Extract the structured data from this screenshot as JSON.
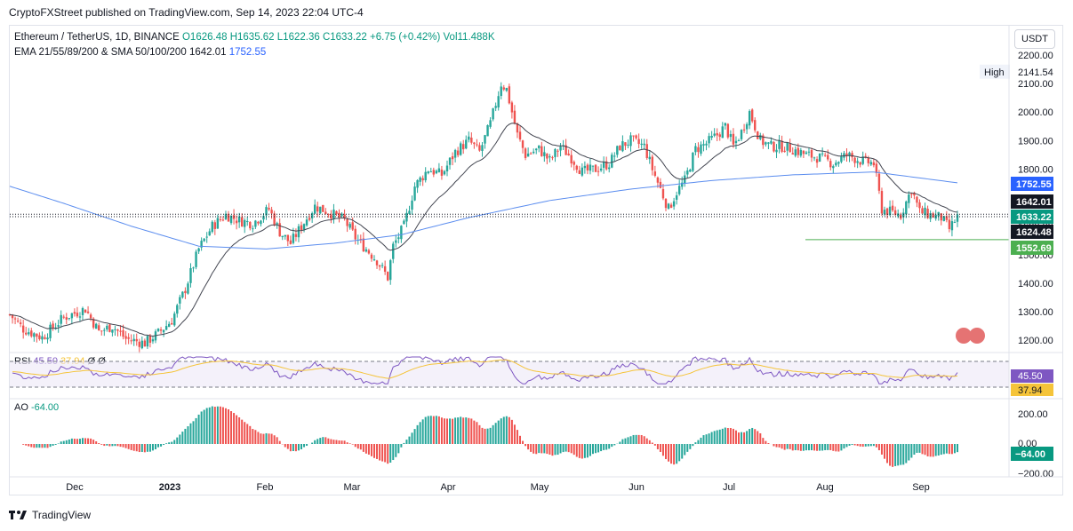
{
  "header": {
    "published": "CryptoFXStreet published on TradingView.com, Sep 14, 2023 22:04 UTC-4"
  },
  "legend": {
    "symbol": "Ethereum / TetherUS, 1D, BINANCE",
    "open": "O1626.48",
    "high": "H1635.62",
    "low": "L1622.36",
    "close": "C1633.22",
    "change": "+6.75 (+0.42%)",
    "volume": "Vol11.488K",
    "indicators_label": "EMA 21/55/89/200 & SMA 50/100/200",
    "indicator_value_1": "1642.01",
    "indicator_value_2": "1752.55"
  },
  "currency_button": "USDT",
  "price_axis": {
    "ticks": [
      "2200.00",
      "2100.00",
      "2000.00",
      "1900.00",
      "1800.00",
      "1700.00",
      "1600.00",
      "1500.00",
      "1400.00",
      "1300.00",
      "1200.00"
    ],
    "high_tag": "High",
    "high_value": "2141.54",
    "labels": [
      {
        "text": "1752.55",
        "value": 1752.55,
        "color": "#2962ff"
      },
      {
        "text": "1642.01",
        "value": 1642.01,
        "color": "#131722"
      },
      {
        "text": "1633.22",
        "value": 1633.22,
        "color": "#089981"
      },
      {
        "text": "1624.48",
        "value": 1624.48,
        "color": "#131722"
      },
      {
        "text": "1552.69",
        "value": 1552.69,
        "color": "#4caf50"
      }
    ]
  },
  "rsi": {
    "label": "RSI",
    "value1": "45.50",
    "value2": "37.94",
    "value3": "Ø",
    "value4": "Ø",
    "tag1": "45.50",
    "tag2": "37.94"
  },
  "ao": {
    "label": "AO",
    "value": "-64.00",
    "ticks": [
      "200.00",
      "0.00",
      "−200.00"
    ],
    "tag": "−64.00"
  },
  "time_axis": [
    "Dec",
    "2023",
    "Feb",
    "Mar",
    "Apr",
    "May",
    "Jun",
    "Jul",
    "Aug",
    "Sep"
  ],
  "footer": "TradingView",
  "colors": {
    "up": "#26a69a",
    "down": "#ef5350",
    "ema": "#434651",
    "sma": "#5b8def",
    "rsi": "#7e57c2",
    "rsi_ma": "#f5c43a",
    "support": "#4caf50"
  },
  "chart_data": {
    "type": "candlestick",
    "x_months": [
      "Dec",
      "2023",
      "Feb",
      "Mar",
      "Apr",
      "May",
      "Jun",
      "Jul",
      "Aug",
      "Sep"
    ],
    "ylim": [
      1160,
      2230
    ],
    "key_closes": [
      {
        "label": "Dec",
        "close": 1280
      },
      {
        "label": "Jan",
        "close": 1195
      },
      {
        "label": "late Jan",
        "close": 1640
      },
      {
        "label": "Feb",
        "close": 1610
      },
      {
        "label": "Mar",
        "close": 1440
      },
      {
        "label": "Apr",
        "close": 1850
      },
      {
        "label": "mid Apr",
        "close": 2100
      },
      {
        "label": "May",
        "close": 1850
      },
      {
        "label": "Jun",
        "close": 1740
      },
      {
        "label": "mid Jun",
        "close": 1650
      },
      {
        "label": "Jul",
        "close": 1950
      },
      {
        "label": "mid Jul",
        "close": 1980
      },
      {
        "label": "Aug",
        "close": 1850
      },
      {
        "label": "mid Aug",
        "close": 1670
      },
      {
        "label": "Sep",
        "close": 1640
      },
      {
        "label": "Sep 14",
        "close": 1633.22
      }
    ],
    "support_level": 1552.69,
    "sma_level": 1752.55
  }
}
